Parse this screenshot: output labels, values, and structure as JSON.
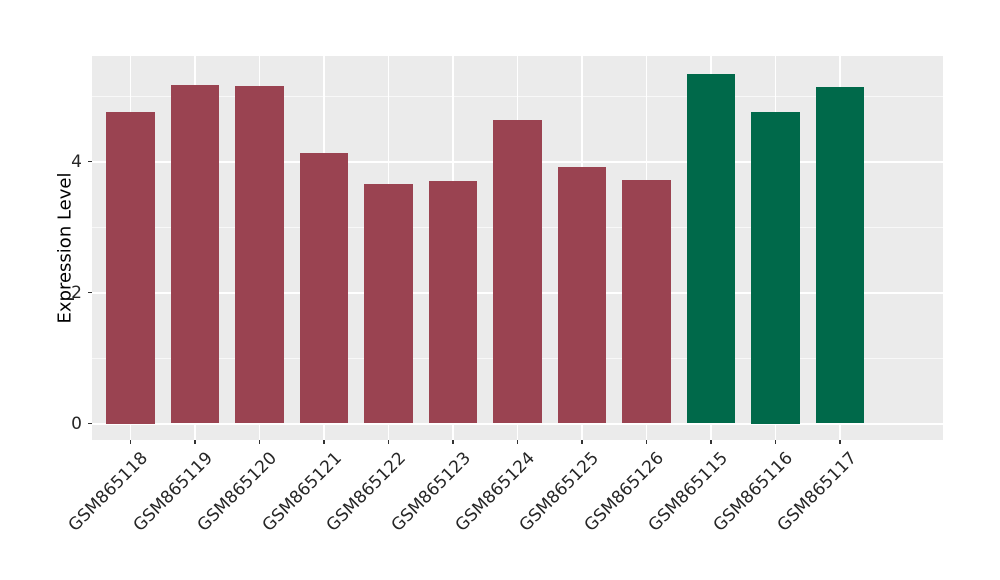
{
  "chart_data": {
    "type": "bar",
    "title": "",
    "xlabel": "",
    "ylabel": "Expression Level",
    "categories": [
      "GSM865118",
      "GSM865119",
      "GSM865120",
      "GSM865121",
      "GSM865122",
      "GSM865123",
      "GSM865124",
      "GSM865125",
      "GSM865126",
      "GSM865115",
      "GSM865116",
      "GSM865117"
    ],
    "values": [
      4.75,
      5.17,
      5.15,
      4.13,
      3.66,
      3.7,
      4.63,
      3.91,
      3.72,
      5.33,
      4.75,
      5.13
    ],
    "bar_colors": [
      "#9a4351",
      "#9a4351",
      "#9a4351",
      "#9a4351",
      "#9a4351",
      "#9a4351",
      "#9a4351",
      "#9a4351",
      "#9a4351",
      "#00694a",
      "#00694a",
      "#00694a"
    ],
    "yticks": [
      0,
      2,
      4
    ],
    "minor_yticks": [
      1,
      3,
      5
    ],
    "ylim": [
      -0.23,
      5.61
    ],
    "grid": true,
    "legend": false,
    "panel_background": "#ebebeb",
    "grid_color": "#ffffff",
    "tick_label_color": "#262626",
    "bar_width_fraction": 0.7,
    "x_label_rotation_deg": 45
  }
}
